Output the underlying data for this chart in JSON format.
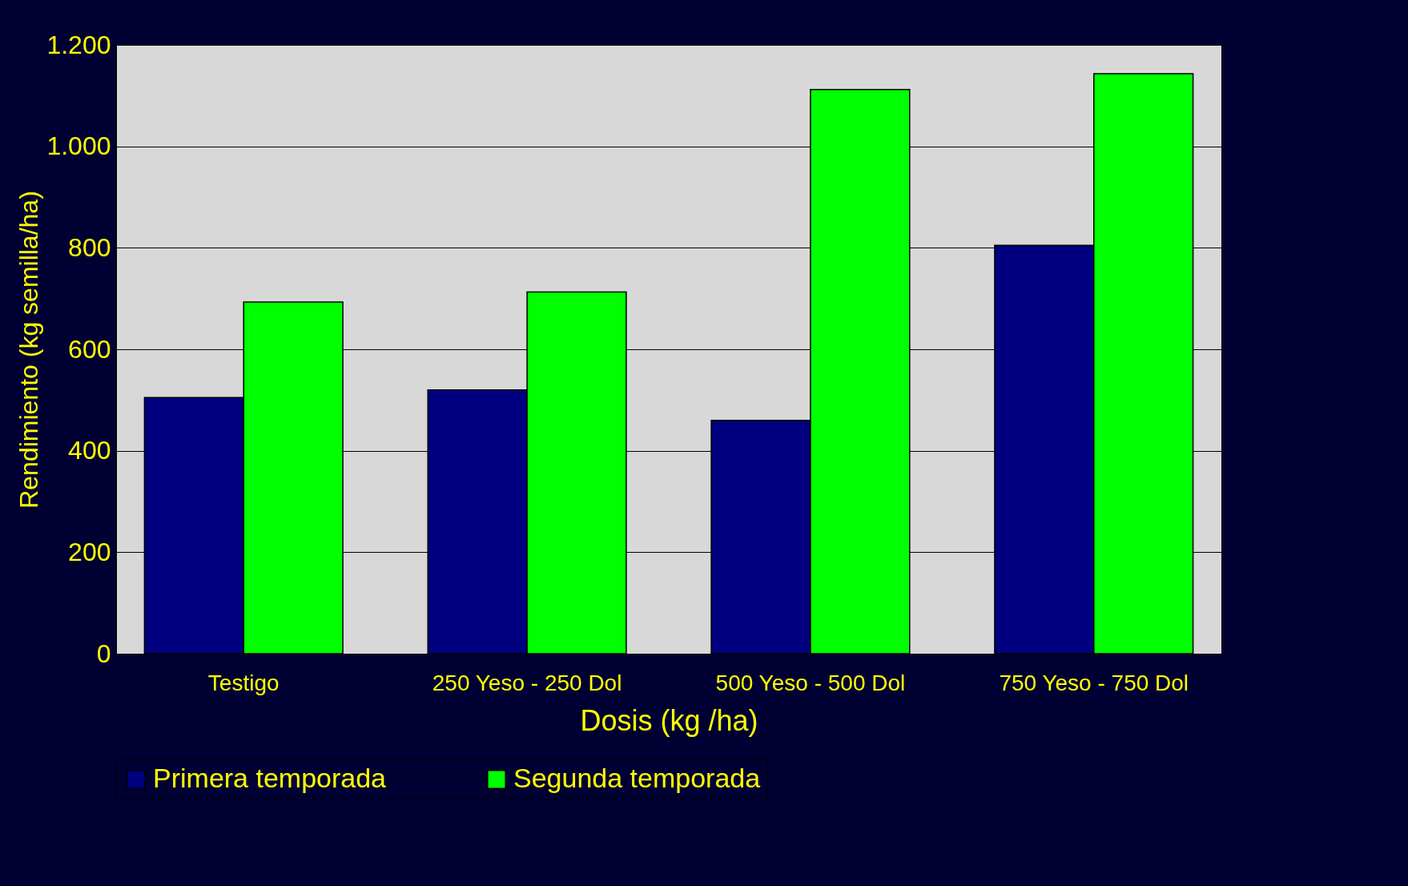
{
  "chart_data": {
    "type": "bar",
    "xlabel": "Dosis (kg /ha)",
    "ylabel": "Rendimiento (kg semilla/ha)",
    "categories": [
      "Testigo",
      "250 Yeso - 250 Dol",
      "500 Yeso - 500 Dol",
      "750 Yeso - 750 Dol"
    ],
    "series": [
      {
        "name": "Primera temporada",
        "color": "#000080",
        "values": [
          505,
          520,
          460,
          805
        ]
      },
      {
        "name": "Segunda temporada",
        "color": "#00ff00",
        "values": [
          693,
          713,
          1112,
          1143
        ]
      }
    ],
    "ylim": [
      0,
      1200
    ],
    "yticks": [
      0,
      {
        "value": 200,
        "label": "200"
      },
      {
        "value": 400,
        "label": "400"
      },
      {
        "value": 600,
        "label": "600"
      },
      {
        "value": 800,
        "label": "800"
      },
      {
        "value": 1000,
        "label": "1.000"
      },
      {
        "value": 1200,
        "label": "1.200"
      }
    ],
    "grid": "y",
    "legend": "bottom"
  }
}
